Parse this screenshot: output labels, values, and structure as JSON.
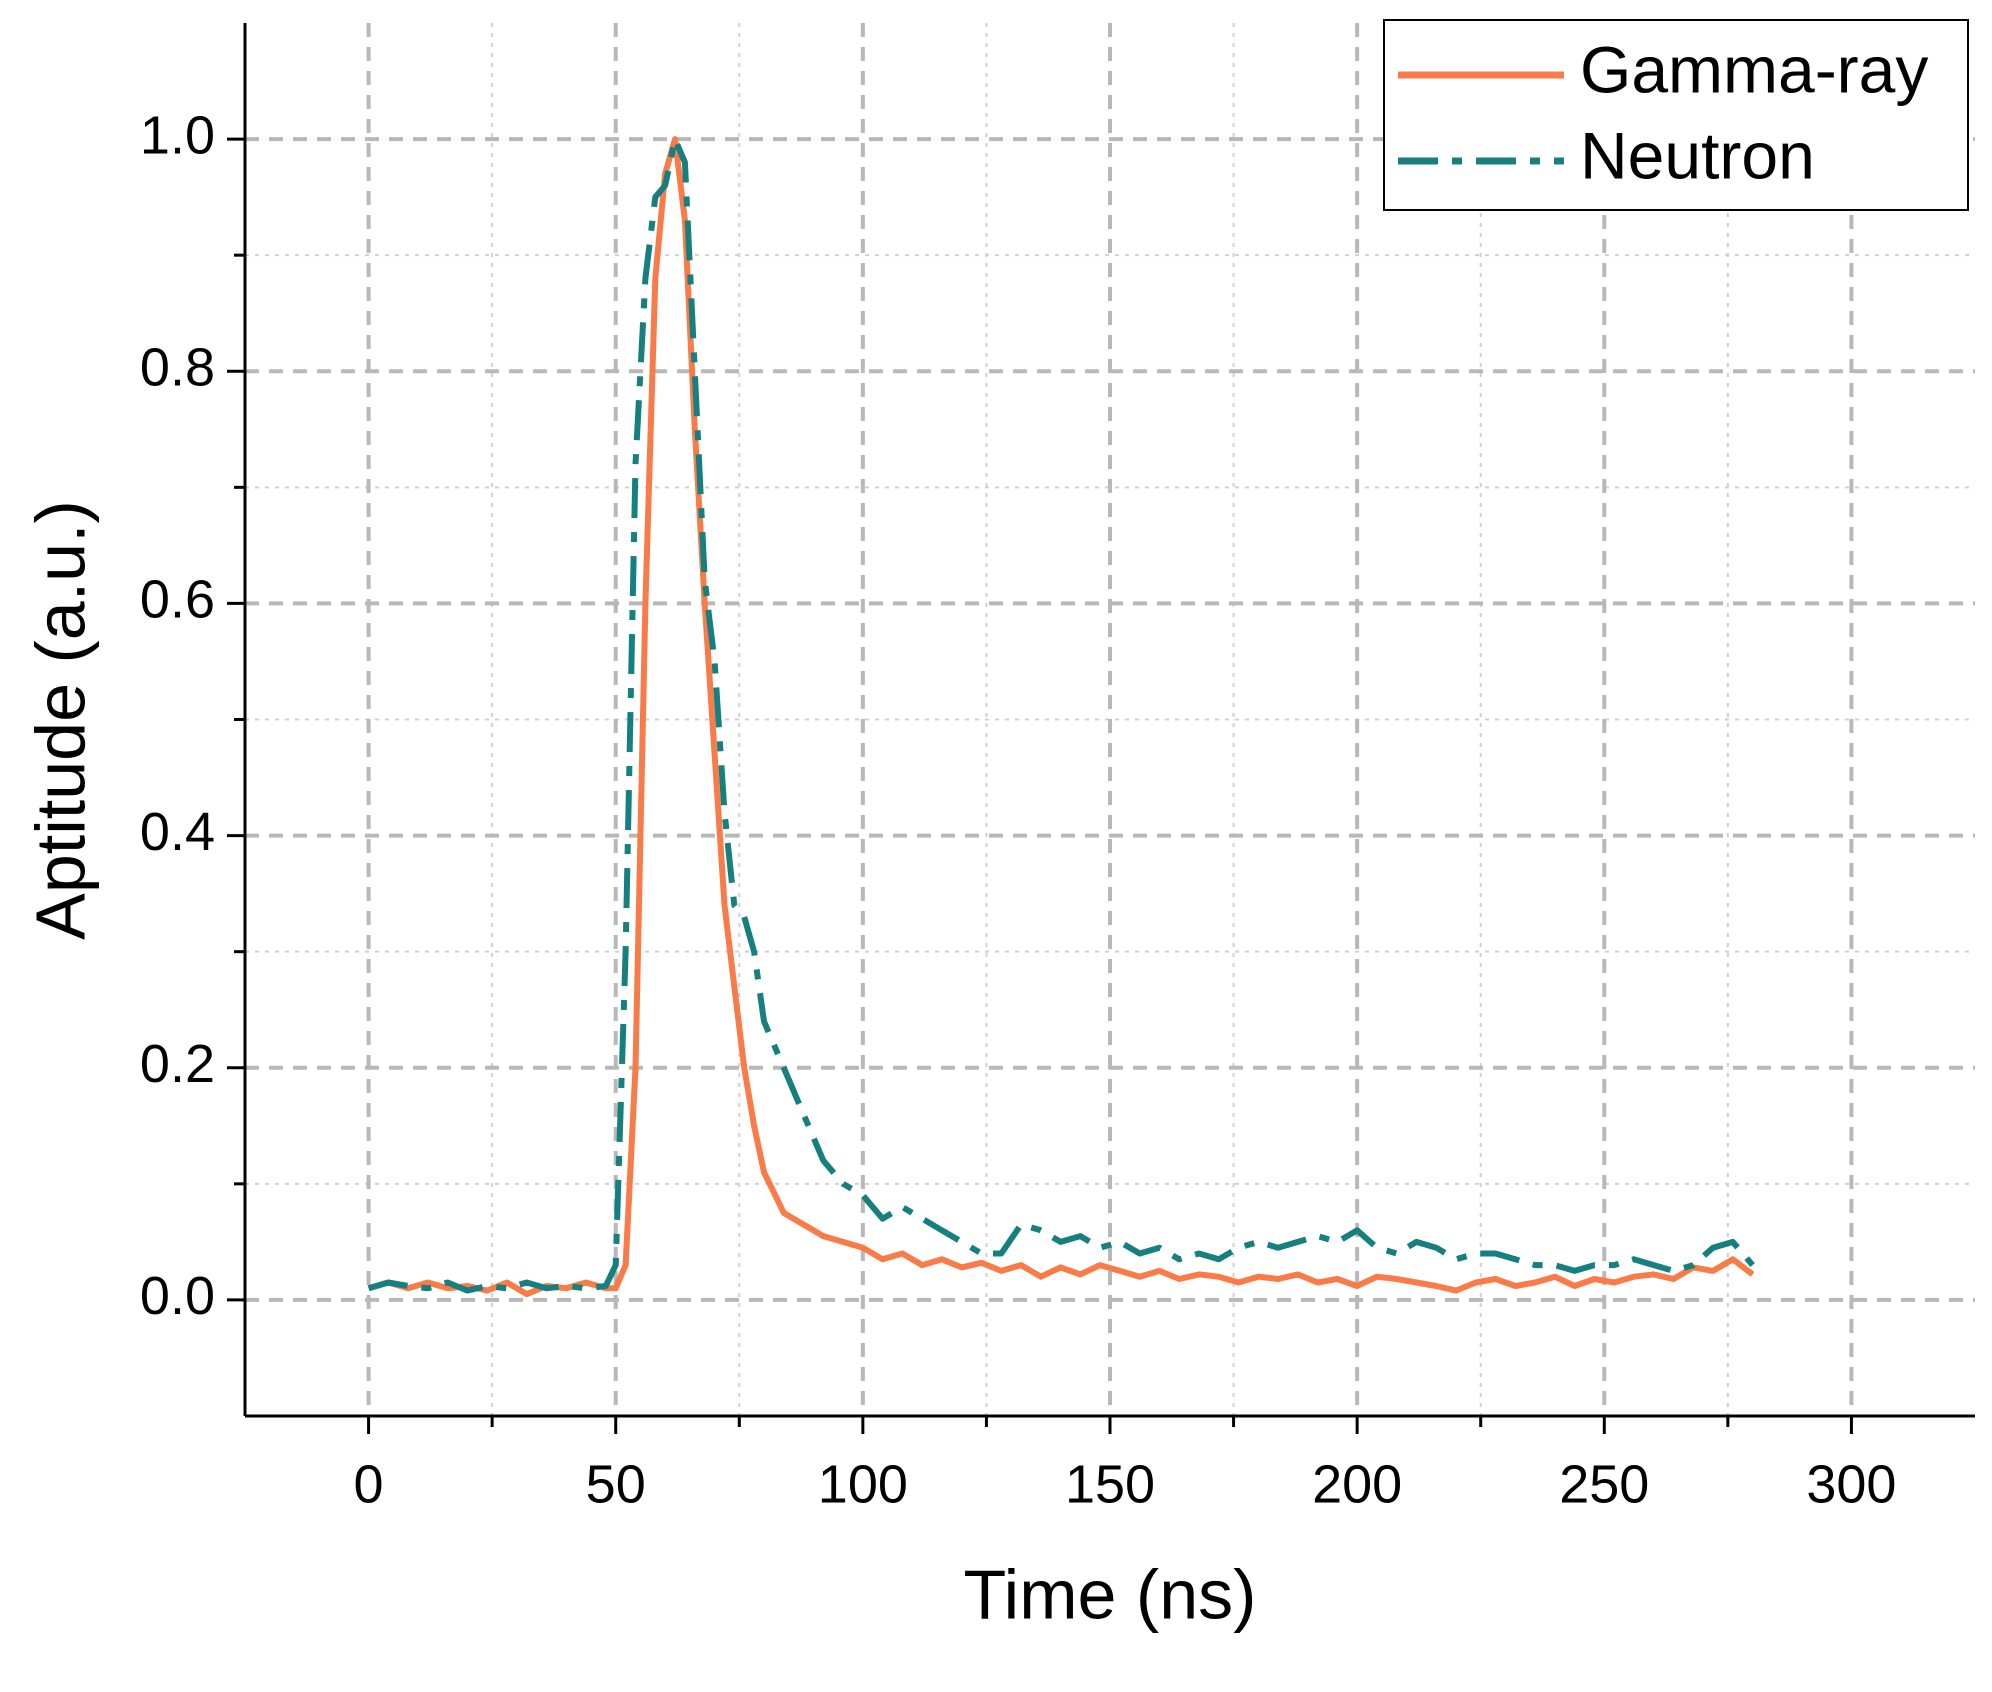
{
  "chart_data": {
    "type": "line",
    "xlabel": "Time (ns)",
    "ylabel": "Aptitude (a.u.)",
    "x": [
      0,
      4,
      8,
      12,
      16,
      20,
      24,
      28,
      32,
      36,
      40,
      44,
      48,
      50,
      52,
      54,
      56,
      58,
      60,
      62,
      64,
      66,
      68,
      70,
      72,
      74,
      76,
      78,
      80,
      84,
      88,
      92,
      96,
      100,
      104,
      108,
      112,
      116,
      120,
      124,
      128,
      132,
      136,
      140,
      144,
      148,
      152,
      156,
      160,
      164,
      168,
      172,
      176,
      180,
      184,
      188,
      192,
      196,
      200,
      204,
      208,
      212,
      216,
      220,
      224,
      228,
      232,
      236,
      240,
      244,
      248,
      252,
      256,
      260,
      264,
      268,
      272,
      276,
      280
    ],
    "series": [
      {
        "name": "Gamma-ray",
        "color": "#f97b48",
        "dash": "solid",
        "values": [
          0.01,
          0.015,
          0.01,
          0.015,
          0.01,
          0.012,
          0.008,
          0.015,
          0.005,
          0.012,
          0.01,
          0.015,
          0.01,
          0.01,
          0.03,
          0.2,
          0.6,
          0.88,
          0.97,
          1.0,
          0.93,
          0.75,
          0.6,
          0.47,
          0.34,
          0.27,
          0.2,
          0.15,
          0.11,
          0.075,
          0.065,
          0.055,
          0.05,
          0.045,
          0.035,
          0.04,
          0.03,
          0.035,
          0.028,
          0.032,
          0.025,
          0.03,
          0.02,
          0.028,
          0.022,
          0.03,
          0.025,
          0.02,
          0.025,
          0.018,
          0.022,
          0.02,
          0.015,
          0.02,
          0.018,
          0.022,
          0.015,
          0.018,
          0.012,
          0.02,
          0.018,
          0.015,
          0.012,
          0.008,
          0.015,
          0.018,
          0.012,
          0.015,
          0.02,
          0.012,
          0.018,
          0.015,
          0.02,
          0.022,
          0.018,
          0.028,
          0.025,
          0.035,
          0.022
        ]
      },
      {
        "name": "Neutron",
        "color": "#167f80",
        "dash": "dashdot",
        "values": [
          0.01,
          0.015,
          0.012,
          0.01,
          0.015,
          0.008,
          0.012,
          0.01,
          0.015,
          0.01,
          0.012,
          0.01,
          0.012,
          0.03,
          0.3,
          0.72,
          0.88,
          0.95,
          0.96,
          1.0,
          0.98,
          0.8,
          0.62,
          0.55,
          0.42,
          0.34,
          0.33,
          0.3,
          0.24,
          0.2,
          0.16,
          0.12,
          0.1,
          0.09,
          0.07,
          0.08,
          0.07,
          0.06,
          0.05,
          0.04,
          0.04,
          0.065,
          0.06,
          0.05,
          0.055,
          0.045,
          0.05,
          0.04,
          0.045,
          0.035,
          0.04,
          0.035,
          0.045,
          0.05,
          0.045,
          0.05,
          0.055,
          0.05,
          0.06,
          0.045,
          0.04,
          0.05,
          0.045,
          0.035,
          0.04,
          0.04,
          0.035,
          0.03,
          0.03,
          0.025,
          0.03,
          0.03,
          0.035,
          0.03,
          0.025,
          0.03,
          0.045,
          0.05,
          0.03
        ]
      }
    ],
    "xlim": [
      -25,
      325
    ],
    "xticks": [
      0,
      50,
      100,
      150,
      200,
      250,
      300
    ],
    "xminorticks": [
      25,
      75,
      125,
      175,
      225,
      275
    ],
    "ylim": [
      -0.1,
      1.1
    ],
    "yticks": [
      {
        "value": 0,
        "label": "0.0"
      },
      0.2,
      0.4,
      0.6,
      0.8,
      {
        "value": 1,
        "label": "1.0"
      }
    ],
    "yminorticks": [
      0.1,
      0.3,
      0.5,
      0.7,
      0.9
    ],
    "grid": true,
    "legend": "upper right"
  }
}
